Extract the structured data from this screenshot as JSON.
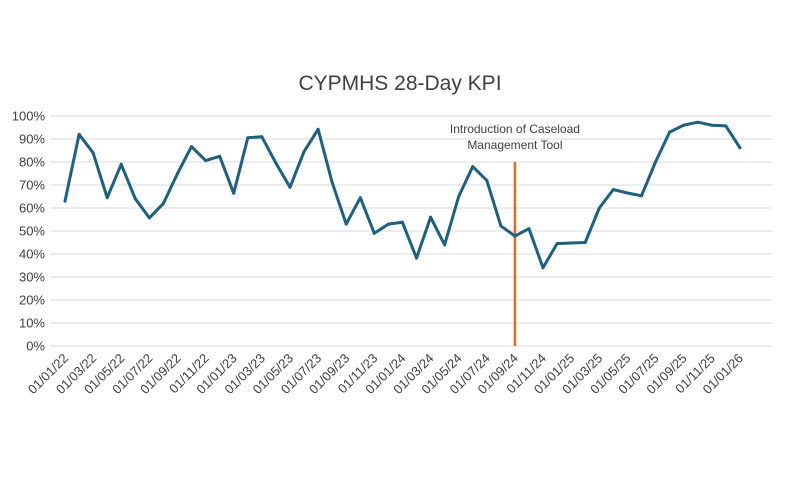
{
  "chart_data": {
    "type": "line",
    "title": "CYPMHS 28-Day KPI",
    "xlabel": "",
    "ylabel": "",
    "ylim": [
      0,
      1
    ],
    "y_ticks": [
      "0%",
      "10%",
      "20%",
      "30%",
      "40%",
      "50%",
      "60%",
      "70%",
      "80%",
      "90%",
      "100%"
    ],
    "x_tick_labels": [
      "01/01/22",
      "01/03/22",
      "01/05/22",
      "01/07/22",
      "01/09/22",
      "01/11/22",
      "01/01/23",
      "01/03/23",
      "01/05/23",
      "01/07/23",
      "01/09/23",
      "01/11/23",
      "01/01/24",
      "01/03/24",
      "01/05/24",
      "01/07/24",
      "01/09/24",
      "01/11/24",
      "01/01/25",
      "01/03/25",
      "01/05/25",
      "01/07/25",
      "01/09/25",
      "01/11/25",
      "01/01/26"
    ],
    "grid": true,
    "legend": "none",
    "line_color": "#1f5f7f",
    "marker_color": "#e8652b",
    "series": [
      {
        "values": [
          0.63,
          0.92,
          0.84,
          0.645,
          0.79,
          0.64,
          0.557,
          0.62,
          0.75,
          0.867,
          0.806,
          0.825,
          0.664,
          0.905,
          0.91,
          0.795,
          0.69,
          0.845,
          0.942,
          0.712,
          0.53,
          0.645,
          0.49,
          0.53,
          0.538,
          0.382,
          0.56,
          0.44,
          0.65,
          0.78,
          0.72,
          0.522,
          0.478,
          0.51,
          0.34,
          0.445,
          0.448,
          0.45,
          0.6,
          0.68,
          0.665,
          0.653,
          0.8,
          0.93,
          0.96,
          0.973,
          0.96,
          0.957,
          0.862
        ],
        "x": [
          "01/01/22",
          "01/02/22",
          "01/03/22",
          "01/04/22",
          "01/05/22",
          "01/06/22",
          "01/07/22",
          "01/08/22",
          "01/09/22",
          "01/10/22",
          "01/11/22",
          "01/12/22",
          "01/01/23",
          "01/02/23",
          "01/03/23",
          "01/04/23",
          "01/05/23",
          "01/06/23",
          "01/07/23",
          "01/08/23",
          "01/09/23",
          "01/10/23",
          "01/11/23",
          "01/12/23",
          "01/01/24",
          "01/02/24",
          "01/03/24",
          "01/04/24",
          "01/05/24",
          "01/06/24",
          "01/07/24",
          "01/08/24",
          "01/09/24",
          "01/10/24",
          "01/11/24",
          "01/12/24",
          "01/01/25",
          "01/02/25",
          "01/03/25",
          "01/04/25",
          "01/05/25",
          "01/06/25",
          "01/07/25",
          "01/08/25",
          "01/09/25",
          "01/10/25",
          "01/11/25",
          "01/12/25",
          "01/01/26"
        ]
      }
    ],
    "annotation": {
      "x": "01/09/24",
      "text_lines": [
        "Introduction of Caseload",
        "Management Tool"
      ],
      "line_top_value": 0.8
    }
  }
}
